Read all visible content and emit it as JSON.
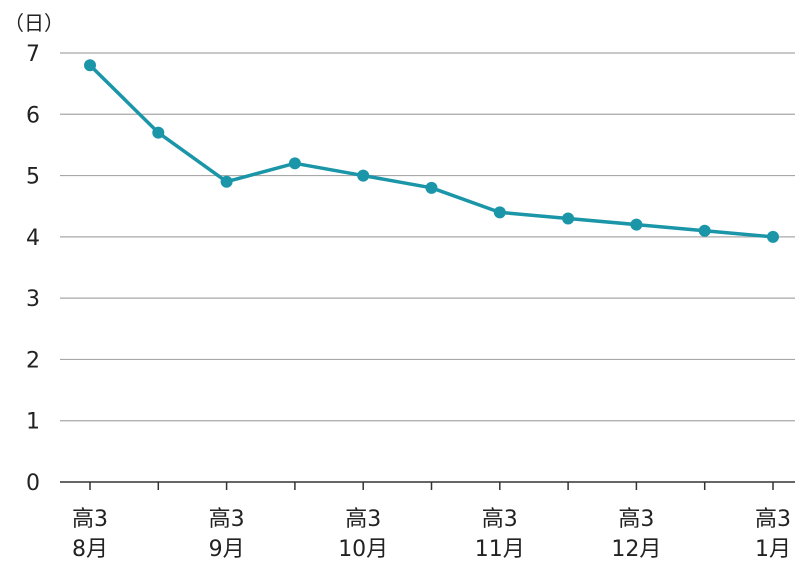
{
  "chart_data": {
    "type": "line",
    "title": "",
    "xlabel": "",
    "ylabel": "（日）",
    "ylim": [
      0,
      7
    ],
    "yticks": [
      0,
      1,
      2,
      3,
      4,
      5,
      6,
      7
    ],
    "grid": true,
    "line_color": "#1a96a8",
    "x_labels": [
      {
        "line1": "高3",
        "line2": "8月"
      },
      {
        "line1": "高3",
        "line2": "9月"
      },
      {
        "line1": "高3",
        "line2": "10月"
      },
      {
        "line1": "高3",
        "line2": "11月"
      },
      {
        "line1": "高3",
        "line2": "12月"
      },
      {
        "line1": "高3",
        "line2": "1月"
      }
    ],
    "series": [
      {
        "values": [
          6.8,
          5.7,
          4.9,
          5.2,
          5.0,
          4.8,
          4.4,
          4.3,
          4.2,
          4.1,
          4.0
        ]
      }
    ]
  }
}
